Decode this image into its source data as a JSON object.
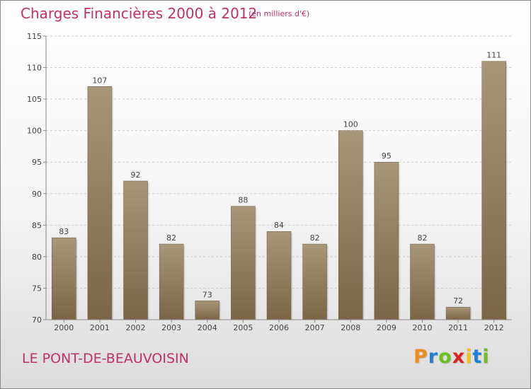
{
  "title": "Charges Financières 2000 à 2012",
  "subtitle": "(en milliers d'€)",
  "location": "LE PONT-DE-BEAUVOISIN",
  "logo": {
    "letters": [
      "P",
      "r",
      "o",
      "x",
      "i",
      "t",
      "i"
    ],
    "colors": [
      "#f08a1c",
      "#1f7fd0",
      "#6cc11f",
      "#d8231e",
      "#f0c419",
      "#1f7fd0",
      "#6cc11f"
    ]
  },
  "chart_data": {
    "type": "bar",
    "categories": [
      "2000",
      "2001",
      "2002",
      "2003",
      "2004",
      "2005",
      "2006",
      "2007",
      "2008",
      "2009",
      "2010",
      "2011",
      "2012"
    ],
    "values": [
      83,
      107,
      92,
      82,
      73,
      88,
      84,
      82,
      100,
      95,
      82,
      72,
      111
    ],
    "data_labels": [
      "83",
      "107",
      "92",
      "82",
      "73",
      "88",
      "84",
      "82",
      "100",
      "95",
      "82",
      "72",
      "111"
    ],
    "ylim": [
      70,
      115
    ],
    "yticks": [
      70,
      75,
      80,
      85,
      90,
      95,
      100,
      105,
      110,
      115
    ],
    "ytick_labels": [
      "70",
      "75",
      "80",
      "85",
      "90",
      "95",
      "100",
      "105",
      "110",
      "115"
    ],
    "grid": true,
    "colors": {
      "bar_light": "#a8967a",
      "bar_dark": "#7a6646",
      "grid": "#cccccc",
      "axis": "#888888",
      "text": "#444444"
    }
  }
}
